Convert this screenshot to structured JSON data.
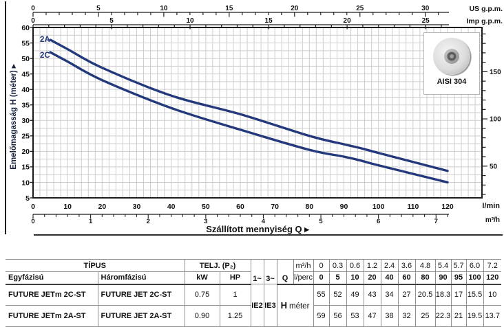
{
  "chart_data": {
    "type": "line",
    "title": "",
    "x_axis": {
      "label": "l/min",
      "ticks": [
        0,
        10,
        20,
        30,
        40,
        50,
        60,
        70,
        80,
        90,
        100,
        110,
        120
      ],
      "minor_step_lmin": 2,
      "range_lmin": [
        0,
        130
      ]
    },
    "x_axis2": {
      "label": "m³/h",
      "ticks": [
        0,
        1,
        2,
        3,
        4,
        5,
        6,
        7
      ],
      "minor_step": 0.2,
      "lmin_per_unit": 16.6667
    },
    "top_scales": [
      {
        "label": "US g.p.m.",
        "ticks": [
          0,
          5,
          10,
          15,
          20,
          25,
          30
        ],
        "minor_step": 1,
        "lmin_per_unit": 3.78541
      },
      {
        "label": "Imp g.p.m.",
        "ticks": [
          0,
          5,
          10,
          15,
          20,
          25
        ],
        "minor_step": 1,
        "lmin_per_unit": 4.54609
      }
    ],
    "y_axis": {
      "label": "Emelőmagasság H (méter) ▸",
      "unit": "méter",
      "ticks": [
        5,
        10,
        15,
        20,
        25,
        30,
        35,
        40,
        45,
        50,
        55,
        60
      ],
      "minor_step": 2.5,
      "range": [
        5,
        60
      ]
    },
    "y_axis2": {
      "unit": "feet",
      "label_ticks": [
        50,
        100,
        150
      ],
      "minor_step": 10,
      "m_per_unit": 0.3048
    },
    "x_title": "Szállított mennyiség Q ▸",
    "grid": true,
    "legend_position": "inside-top-left",
    "curve_color": "#23397b",
    "series": [
      {
        "name": "2A",
        "points": [
          [
            5,
            56
          ],
          [
            10,
            53
          ],
          [
            20,
            47
          ],
          [
            40,
            38
          ],
          [
            60,
            32
          ],
          [
            80,
            25
          ],
          [
            90,
            22.3
          ],
          [
            95,
            21
          ],
          [
            100,
            19.5
          ],
          [
            120,
            13.7
          ]
        ]
      },
      {
        "name": "2C",
        "points": [
          [
            5,
            52
          ],
          [
            10,
            49
          ],
          [
            20,
            43
          ],
          [
            40,
            34
          ],
          [
            60,
            27
          ],
          [
            80,
            20.5
          ],
          [
            90,
            18.3
          ],
          [
            95,
            17
          ],
          [
            100,
            15.5
          ],
          [
            120,
            10
          ]
        ]
      }
    ],
    "inset_label": "AISI 304"
  },
  "table": {
    "tipus_header": "TÍPUS",
    "telj_header": "TELJ. (P₂)",
    "col_single": "Egyfázisú",
    "col_three": "Háromfázisú",
    "col_kw": "kW",
    "col_hp": "HP",
    "phase1": "1~",
    "phase3": "3~",
    "ie2": "IE2",
    "ie3": "IE3",
    "q_label": "Q",
    "m3h_label": "m³/h",
    "lperc_label": "l/perc",
    "h_label": "H",
    "h_unit": "méter",
    "q_m3h": [
      "0",
      "0.3",
      "0.6",
      "1.2",
      "2.4",
      "3.6",
      "4.8",
      "5.4",
      "5.7",
      "6.0",
      "7.2"
    ],
    "q_lperc": [
      "0",
      "5",
      "10",
      "20",
      "40",
      "60",
      "80",
      "90",
      "95",
      "100",
      "120"
    ],
    "rows": [
      {
        "single": "FUTURE JETm 2C-ST",
        "three": "FUTURE JET 2C-ST",
        "kw": "0.75",
        "hp": "1",
        "h": [
          "55",
          "52",
          "49",
          "43",
          "34",
          "27",
          "20.5",
          "18.3",
          "17",
          "15.5",
          "10"
        ]
      },
      {
        "single": "FUTURE JETm 2A-ST",
        "three": "FUTURE JET 2A-ST",
        "kw": "0.90",
        "hp": "1.25",
        "h": [
          "59",
          "56",
          "53",
          "47",
          "38",
          "32",
          "25",
          "22.3",
          "21",
          "19.5",
          "13.7"
        ]
      }
    ]
  }
}
